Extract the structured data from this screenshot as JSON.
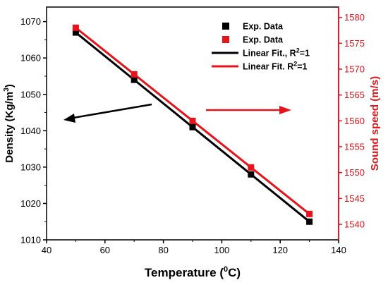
{
  "chart_data": {
    "type": "scatter",
    "x": [
      50,
      70,
      90,
      110,
      130
    ],
    "xlabel_main": "Temperature (",
    "xlabel_sup": "0",
    "xlabel_tail": "C)",
    "xlim": [
      40,
      140
    ],
    "xticks": [
      40,
      60,
      80,
      100,
      120,
      140
    ],
    "left_axis": {
      "label_main": "Density (Kg/m",
      "label_sup": "3",
      "label_tail": ")",
      "ylim": [
        1010,
        1074
      ],
      "ticks": [
        1010,
        1020,
        1030,
        1040,
        1050,
        1060,
        1070
      ],
      "color": "#000000"
    },
    "right_axis": {
      "label": "Sound speed (m/s)",
      "ylim": [
        1537,
        1582
      ],
      "ticks": [
        1540,
        1545,
        1550,
        1555,
        1560,
        1565,
        1570,
        1575,
        1580
      ],
      "color": "#e8121b"
    },
    "series": [
      {
        "name": "Exp. Data",
        "axis": "left",
        "marker": "square",
        "color": "#000000",
        "values": [
          1067,
          1054,
          1041,
          1028,
          1015
        ]
      },
      {
        "name": "Exp. Data",
        "axis": "right",
        "marker": "square",
        "color": "#e8121b",
        "values": [
          1578,
          1569,
          1560,
          1551,
          1542
        ]
      },
      {
        "name": "Linear Fit., R2=1",
        "axis": "left",
        "type": "line",
        "color": "#000000",
        "values": [
          1067,
          1054,
          1041,
          1028,
          1015
        ]
      },
      {
        "name": "Linear Fit.  R2=1",
        "axis": "right",
        "type": "line",
        "color": "#e8121b",
        "values": [
          1578,
          1569,
          1560,
          1551,
          1542
        ]
      }
    ],
    "legend": {
      "placement": "top-right",
      "entries": [
        {
          "marker": "square",
          "color": "#000000",
          "text": "Exp. Data"
        },
        {
          "marker": "square",
          "color": "#e8121b",
          "text": "Exp. Data"
        },
        {
          "marker": "line",
          "color": "#000000",
          "text_main": "Linear Fit., R",
          "text_sup": "2",
          "text_tail": "=1"
        },
        {
          "marker": "line",
          "color": "#e8121b",
          "text_main": "Linear Fit.  R",
          "text_sup": "2",
          "text_tail": "=1"
        }
      ]
    },
    "annotations": [
      {
        "kind": "arrow",
        "direction": "left",
        "color": "#000000",
        "meaning": "density-axis"
      },
      {
        "kind": "arrow",
        "direction": "right",
        "color": "#e8121b",
        "meaning": "sound-speed-axis"
      }
    ],
    "grid": false
  }
}
